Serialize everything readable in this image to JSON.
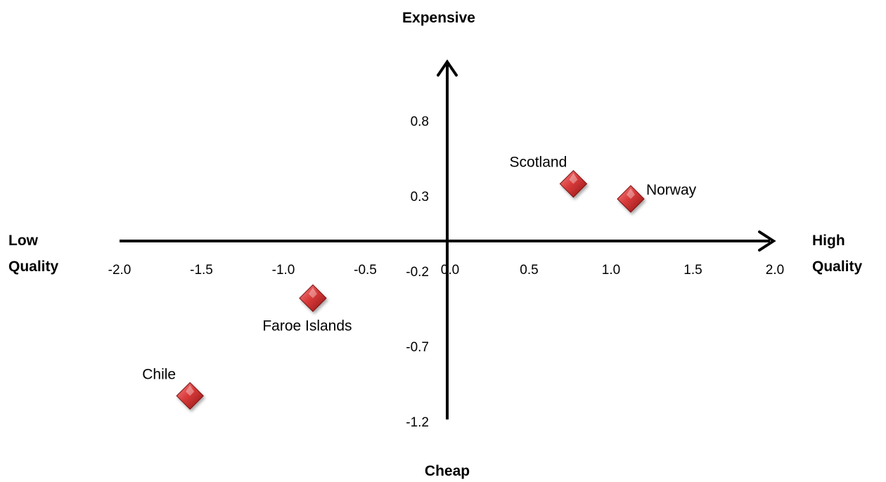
{
  "chart_data": {
    "type": "scatter",
    "title": "",
    "axis_titles": {
      "top": "Expensive",
      "bottom": "Cheap",
      "left": [
        "Low",
        "Quality"
      ],
      "right": [
        "High",
        "Quality"
      ]
    },
    "xlim": [
      -2.0,
      2.0
    ],
    "ylim": [
      -1.2,
      1.2
    ],
    "x_ticks": [
      "-2.0",
      "-1.5",
      "-1.0",
      "-0.5",
      "0.0",
      "0.5",
      "1.0",
      "1.5",
      "2.0"
    ],
    "x_tick_values": [
      -2.0,
      -1.5,
      -1.0,
      -0.5,
      0.0,
      0.5,
      1.0,
      1.5,
      2.0
    ],
    "y_ticks": [
      "0.8",
      "0.3",
      "-0.2",
      "-0.7",
      "-1.2"
    ],
    "y_tick_values": [
      0.8,
      0.3,
      -0.2,
      -0.7,
      -1.2
    ],
    "grid": false,
    "marker": "diamond",
    "marker_color": "#d93a3a",
    "points": [
      {
        "label": "Scotland",
        "x": 0.77,
        "y": 0.38
      },
      {
        "label": "Norway",
        "x": 1.12,
        "y": 0.28
      },
      {
        "label": "Faroe Islands",
        "x": -0.82,
        "y": -0.38
      },
      {
        "label": "Chile",
        "x": -1.57,
        "y": -1.03
      }
    ]
  }
}
